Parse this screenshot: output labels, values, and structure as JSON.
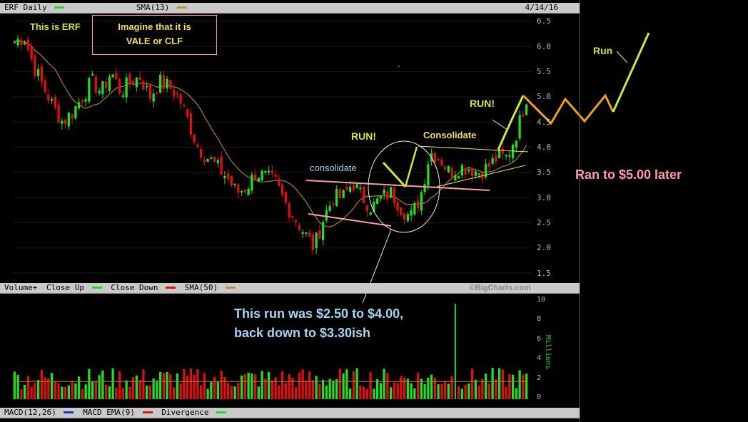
{
  "header": {
    "symbol_label": "ERF Daily",
    "sma_label": "SMA(13)",
    "date": "4/14/16"
  },
  "volume_header": {
    "label": "Volume+",
    "close_up": "Close Up",
    "close_down": "Close Down",
    "sma": "SMA(50)",
    "credit": "©BigCharts.com"
  },
  "macd_header": {
    "macd": "MACD(12,26)",
    "ema": "MACD EMA(9)",
    "divergence": "Divergence"
  },
  "annotations": {
    "this_is_erf": "This is ERF",
    "imagine_1": "Imagine that it is",
    "imagine_2": "VALE or CLF",
    "consolidate_lower": "consolidate",
    "run1": "RUN!",
    "consolidate_upper": "Consolidate",
    "run2": "RUN!",
    "run_future": "Run",
    "ran_later": "Ran to $5.00 later",
    "run_note_1": "This run was $2.50 to $4.00,",
    "run_note_2": "back down to $3.30ish"
  },
  "colors": {
    "up": "#22dd22",
    "down": "#e01010",
    "sma": "#a07838",
    "ann_green": "#c8ea3c",
    "ann_yellow": "#f0e060",
    "ann_pink": "#ff9ab0",
    "ann_blue": "#a8d4f0",
    "future_orange": "#f0a020"
  },
  "chart_data": [
    {
      "type": "candlestick",
      "title": "ERF Daily",
      "y_ticks": [
        "6.5",
        "6.0",
        "5.5",
        "5.0",
        "4.5",
        "4.0",
        "3.5",
        "3.0",
        "2.5",
        "2.0",
        "1.5"
      ],
      "ylim": [
        1.4,
        6.55
      ],
      "series": [
        {
          "name": "ERF",
          "close_path": [
            6.1,
            6.2,
            5.6,
            5.2,
            4.8,
            4.5,
            4.7,
            5.0,
            5.3,
            5.1,
            5.5,
            5.1,
            5.3,
            5.4,
            5.0,
            5.3,
            5.2,
            5.0,
            4.5,
            4.0,
            3.8,
            3.6,
            3.4,
            3.1,
            3.2,
            3.5,
            3.4,
            3.3,
            2.9,
            2.6,
            2.3,
            2.0,
            2.6,
            3.0,
            3.0,
            3.3,
            3.0,
            2.8,
            3.0,
            3.1,
            2.8,
            2.6,
            3.0,
            3.9,
            3.8,
            3.5,
            3.6,
            3.6,
            3.5,
            3.6,
            3.8,
            3.8,
            4.3,
            5.0
          ]
        },
        {
          "name": "SMA(13)",
          "type": "line"
        }
      ]
    },
    {
      "type": "bar",
      "title": "Volume+",
      "y_ticks": [
        "10",
        "8",
        "6",
        "4",
        "2",
        "0"
      ],
      "ylabel": "Millions",
      "ylim": [
        0,
        10
      ],
      "series": [
        {
          "name": "Close Up"
        },
        {
          "name": "Close Down"
        },
        {
          "name": "SMA(50)",
          "value": 1.8
        }
      ],
      "spike": 9.7
    }
  ]
}
